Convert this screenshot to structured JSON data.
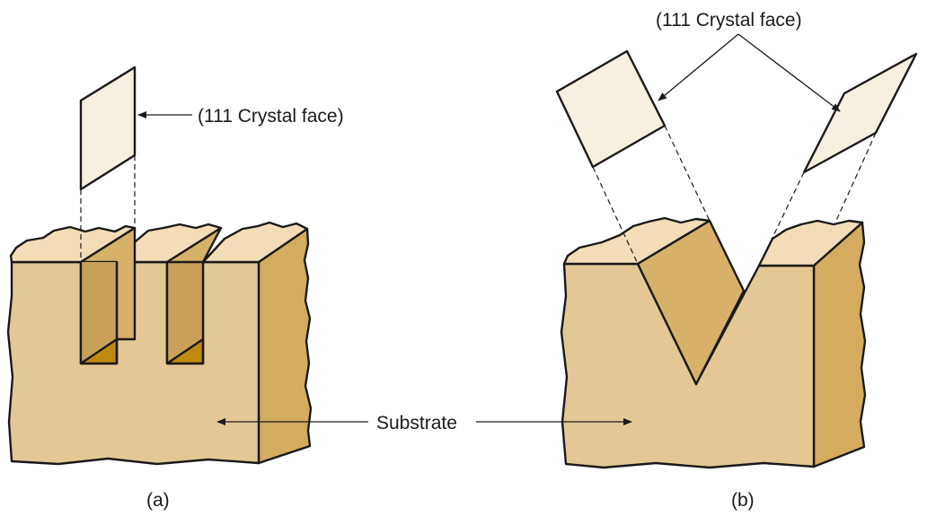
{
  "labels": {
    "crystal_face_a": "(111 Crystal face)",
    "crystal_face_b": "(111 Crystal face)",
    "substrate": "Substrate",
    "panel_a": "(a)",
    "panel_b": "(b)"
  },
  "colors": {
    "front_face": "#e3c895",
    "top_face": "#f2ddb7",
    "side_face": "#d4ac5f",
    "groove_wall": "#d7b06a",
    "groove_bottom": "#c08a10",
    "crystal_plane": "#f7efdf",
    "outline": "#1a1a1a"
  }
}
